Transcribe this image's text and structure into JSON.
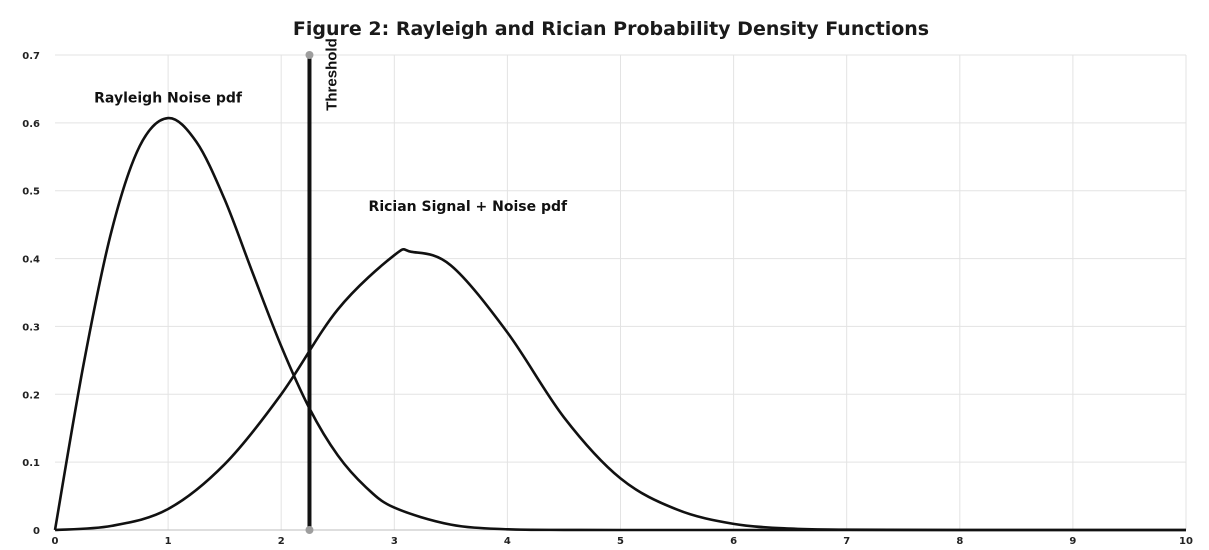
{
  "chart_data": {
    "type": "line",
    "title": "Figure 2: Rayleigh and Rician Probability Density Functions",
    "xlabel": "",
    "ylabel": "",
    "xlim": [
      0,
      10
    ],
    "ylim": [
      0,
      0.7
    ],
    "x_ticks": [
      "0",
      "1",
      "2",
      "3",
      "4",
      "5",
      "6",
      "7",
      "8",
      "9",
      "10"
    ],
    "y_ticks": [
      "0",
      "0.1",
      "0.2",
      "0.3",
      "0.4",
      "0.5",
      "0.6",
      "0.7"
    ],
    "grid": true,
    "legend": "none",
    "series": [
      {
        "x": [
          0,
          0.25,
          0.5,
          0.75,
          1.0,
          1.25,
          1.5,
          1.75,
          2.0,
          2.25,
          2.5,
          2.75,
          3.0,
          3.5,
          4.0,
          4.5,
          5.0,
          6.0,
          10.0
        ],
        "y": [
          0,
          0.242,
          0.441,
          0.566,
          0.607,
          0.572,
          0.487,
          0.378,
          0.271,
          0.179,
          0.11,
          0.063,
          0.033,
          0.008,
          0.001,
          0.0002,
          0,
          0,
          0
        ]
      },
      {
        "x": [
          0,
          0.5,
          1.0,
          1.5,
          2.0,
          2.5,
          3.0,
          3.15,
          3.5,
          4.0,
          4.5,
          5.0,
          5.5,
          6.0,
          6.5,
          7.0,
          8.0,
          10.0
        ],
        "y": [
          0,
          0.006,
          0.031,
          0.097,
          0.2,
          0.325,
          0.405,
          0.41,
          0.39,
          0.291,
          0.166,
          0.076,
          0.03,
          0.009,
          0.002,
          0.0005,
          0,
          0
        ]
      }
    ],
    "annotations": [
      {
        "text": "Rayleigh Noise pdf",
        "x": 1.0,
        "y": 0.63
      },
      {
        "text": "Rician Signal + Noise pdf",
        "x": 3.65,
        "y": 0.47
      },
      {
        "text": "Threshold",
        "x": 2.25,
        "y": 0.63,
        "orientation": "vertical"
      }
    ],
    "threshold": {
      "x": 2.25,
      "y_range": [
        0,
        0.7
      ]
    }
  }
}
